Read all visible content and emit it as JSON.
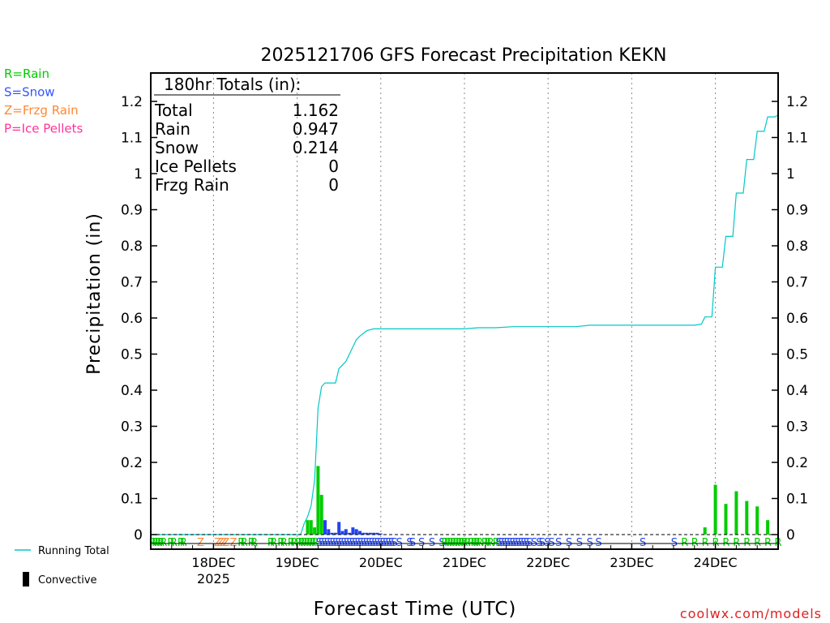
{
  "chart_data": {
    "type": "bar",
    "title": "2025121706 GFS Forecast Precipitation KEKN",
    "ylabel": "Precipitation (in)",
    "xlabel": "Forecast Time (UTC)",
    "watermark": "coolwx.com/models",
    "ylim": [
      0,
      1.28
    ],
    "yticks": [
      "0",
      "0.1",
      "0.2",
      "0.3",
      "0.4",
      "0.5",
      "0.6",
      "0.7",
      "0.8",
      "0.9",
      "1",
      "1.1",
      "1.2"
    ],
    "ytick_values": [
      0,
      0.1,
      0.2,
      0.3,
      0.4,
      0.5,
      0.6,
      0.7,
      0.8,
      0.9,
      1,
      1.1,
      1.2
    ],
    "xlim_hours": [
      6,
      186
    ],
    "x_unit": "forecast hour",
    "grid": "vertical-dotted",
    "date_ticks": [
      {
        "label": "18DEC",
        "sub": "2025",
        "hour": 24
      },
      {
        "label": "19DEC",
        "sub": "",
        "hour": 48
      },
      {
        "label": "20DEC",
        "sub": "",
        "hour": 72
      },
      {
        "label": "21DEC",
        "sub": "",
        "hour": 96
      },
      {
        "label": "22DEC",
        "sub": "",
        "hour": 120
      },
      {
        "label": "23DEC",
        "sub": "",
        "hour": 144
      },
      {
        "label": "24DEC",
        "sub": "",
        "hour": 168
      }
    ],
    "legend_types": [
      {
        "text": "R=Rain",
        "color": "#00cc00"
      },
      {
        "text": "S=Snow",
        "color": "#3355ff"
      },
      {
        "text": "Z=Frzg Rain",
        "color": "#ff8833"
      },
      {
        "text": "P=Ice Pellets",
        "color": "#ff3399"
      }
    ],
    "legend_series": [
      {
        "text": "Running Total",
        "color": "#00c8c8",
        "kind": "line"
      },
      {
        "text": "Convective",
        "color": "#000000",
        "kind": "bar"
      }
    ],
    "totals": {
      "heading": "180hr Totals (in):",
      "rows": [
        {
          "label": "Total",
          "value": "1.162"
        },
        {
          "label": "Rain",
          "value": "0.947"
        },
        {
          "label": "Snow",
          "value": "0.214"
        },
        {
          "label": "Ice Pellets",
          "value": "0"
        },
        {
          "label": "Frzg Rain",
          "value": "0"
        }
      ]
    },
    "colors": {
      "rain": "#00cc00",
      "snow": "#2244ee",
      "frzg": "#ff8833",
      "line": "#00c8c8"
    },
    "bars": [
      {
        "hour": 51,
        "value": 0.04,
        "type": "rain"
      },
      {
        "hour": 52,
        "value": 0.04,
        "type": "rain"
      },
      {
        "hour": 53,
        "value": 0.02,
        "type": "rain"
      },
      {
        "hour": 54,
        "value": 0.19,
        "type": "rain"
      },
      {
        "hour": 55,
        "value": 0.11,
        "type": "rain"
      },
      {
        "hour": 56,
        "value": 0.04,
        "type": "snow"
      },
      {
        "hour": 57,
        "value": 0.015,
        "type": "snow"
      },
      {
        "hour": 58,
        "value": 0.005,
        "type": "snow"
      },
      {
        "hour": 59,
        "value": 0.005,
        "type": "snow"
      },
      {
        "hour": 60,
        "value": 0.035,
        "type": "snow"
      },
      {
        "hour": 61,
        "value": 0.01,
        "type": "snow"
      },
      {
        "hour": 62,
        "value": 0.015,
        "type": "snow"
      },
      {
        "hour": 63,
        "value": 0.005,
        "type": "snow"
      },
      {
        "hour": 64,
        "value": 0.02,
        "type": "snow"
      },
      {
        "hour": 65,
        "value": 0.015,
        "type": "snow"
      },
      {
        "hour": 66,
        "value": 0.01,
        "type": "snow"
      },
      {
        "hour": 67,
        "value": 0.005,
        "type": "snow"
      },
      {
        "hour": 68,
        "value": 0.005,
        "type": "snow"
      },
      {
        "hour": 69,
        "value": 0.005,
        "type": "snow"
      },
      {
        "hour": 70,
        "value": 0.005,
        "type": "snow"
      },
      {
        "hour": 71,
        "value": 0.005,
        "type": "snow"
      },
      {
        "hour": 72,
        "value": 0.003,
        "type": "snow"
      },
      {
        "hour": 165,
        "value": 0.02,
        "type": "rain"
      },
      {
        "hour": 168,
        "value": 0.138,
        "type": "rain"
      },
      {
        "hour": 171,
        "value": 0.085,
        "type": "rain"
      },
      {
        "hour": 174,
        "value": 0.12,
        "type": "rain"
      },
      {
        "hour": 177,
        "value": 0.093,
        "type": "rain"
      },
      {
        "hour": 180,
        "value": 0.078,
        "type": "rain"
      },
      {
        "hour": 183,
        "value": 0.04,
        "type": "rain"
      }
    ],
    "running_total": [
      [
        6,
        0
      ],
      [
        49,
        0
      ],
      [
        50,
        0.03
      ],
      [
        51,
        0.05
      ],
      [
        52,
        0.08
      ],
      [
        53,
        0.15
      ],
      [
        53.5,
        0.25
      ],
      [
        54,
        0.35
      ],
      [
        55,
        0.41
      ],
      [
        56,
        0.42
      ],
      [
        57,
        0.42
      ],
      [
        59,
        0.42
      ],
      [
        60,
        0.46
      ],
      [
        61,
        0.47
      ],
      [
        62,
        0.48
      ],
      [
        63,
        0.5
      ],
      [
        64,
        0.52
      ],
      [
        65,
        0.54
      ],
      [
        66,
        0.55
      ],
      [
        68,
        0.565
      ],
      [
        70,
        0.57
      ],
      [
        72,
        0.57
      ],
      [
        96,
        0.57
      ],
      [
        100,
        0.573
      ],
      [
        105,
        0.573
      ],
      [
        110,
        0.576
      ],
      [
        115,
        0.576
      ],
      [
        128,
        0.576
      ],
      [
        132,
        0.58
      ],
      [
        140,
        0.58
      ],
      [
        162,
        0.58
      ],
      [
        164,
        0.583
      ],
      [
        165,
        0.603
      ],
      [
        167,
        0.603
      ],
      [
        168,
        0.741
      ],
      [
        170,
        0.741
      ],
      [
        171,
        0.826
      ],
      [
        173,
        0.826
      ],
      [
        174,
        0.946
      ],
      [
        176,
        0.946
      ],
      [
        177,
        1.039
      ],
      [
        179,
        1.039
      ],
      [
        180,
        1.117
      ],
      [
        182,
        1.117
      ],
      [
        183,
        1.157
      ],
      [
        185,
        1.157
      ],
      [
        186,
        1.162
      ]
    ],
    "type_strip": [
      {
        "hour": 6.5,
        "code": "R",
        "type": "rain"
      },
      {
        "hour": 7.3,
        "code": "R",
        "type": "rain"
      },
      {
        "hour": 8.1,
        "code": "R",
        "type": "rain"
      },
      {
        "hour": 8.9,
        "code": "R",
        "type": "rain"
      },
      {
        "hour": 9.7,
        "code": "R",
        "type": "rain"
      },
      {
        "hour": 11.8,
        "code": "R",
        "type": "rain"
      },
      {
        "hour": 12.6,
        "code": "R",
        "type": "rain"
      },
      {
        "hour": 14.7,
        "code": "R",
        "type": "rain"
      },
      {
        "hour": 15.4,
        "code": "R",
        "type": "rain"
      },
      {
        "hour": 20.3,
        "code": "Z",
        "type": "frzg"
      },
      {
        "hour": 25.2,
        "code": "Z",
        "type": "frzg"
      },
      {
        "hour": 26.0,
        "code": "Z",
        "type": "frzg"
      },
      {
        "hour": 26.8,
        "code": "Z",
        "type": "frzg"
      },
      {
        "hour": 27.6,
        "code": "Z",
        "type": "frzg"
      },
      {
        "hour": 29.7,
        "code": "Z",
        "type": "frzg"
      },
      {
        "hour": 32.0,
        "code": "R",
        "type": "rain"
      },
      {
        "hour": 32.8,
        "code": "R",
        "type": "rain"
      },
      {
        "hour": 34.9,
        "code": "R",
        "type": "rain"
      },
      {
        "hour": 35.7,
        "code": "R",
        "type": "rain"
      },
      {
        "hour": 40.5,
        "code": "R",
        "type": "rain"
      },
      {
        "hour": 41.3,
        "code": "R",
        "type": "rain"
      },
      {
        "hour": 43.4,
        "code": "R",
        "type": "rain"
      },
      {
        "hour": 44.2,
        "code": "R",
        "type": "rain"
      },
      {
        "hour": 46.3,
        "code": "R",
        "type": "rain"
      },
      {
        "hour": 47.1,
        "code": "R",
        "type": "rain"
      },
      {
        "hour": 48.5,
        "code": "R",
        "type": "rain"
      },
      {
        "hour": 49.3,
        "code": "R",
        "type": "rain"
      },
      {
        "hour": 50.1,
        "code": "R",
        "type": "rain"
      },
      {
        "hour": 50.9,
        "code": "R",
        "type": "rain"
      },
      {
        "hour": 51.7,
        "code": "R",
        "type": "rain"
      },
      {
        "hour": 52.5,
        "code": "R",
        "type": "rain"
      },
      {
        "hour": 53.3,
        "code": "R",
        "type": "rain"
      },
      {
        "hour": 54.3,
        "code": "S",
        "type": "snow"
      },
      {
        "hour": 55.1,
        "code": "S",
        "type": "snow"
      },
      {
        "hour": 55.9,
        "code": "S",
        "type": "snow"
      },
      {
        "hour": 56.7,
        "code": "S",
        "type": "snow"
      },
      {
        "hour": 57.5,
        "code": "S",
        "type": "snow"
      },
      {
        "hour": 58.3,
        "code": "S",
        "type": "snow"
      },
      {
        "hour": 59.1,
        "code": "S",
        "type": "snow"
      },
      {
        "hour": 59.9,
        "code": "S",
        "type": "snow"
      },
      {
        "hour": 60.7,
        "code": "S",
        "type": "snow"
      },
      {
        "hour": 61.5,
        "code": "S",
        "type": "snow"
      },
      {
        "hour": 62.3,
        "code": "S",
        "type": "snow"
      },
      {
        "hour": 63.1,
        "code": "S",
        "type": "snow"
      },
      {
        "hour": 63.9,
        "code": "S",
        "type": "snow"
      },
      {
        "hour": 64.7,
        "code": "S",
        "type": "snow"
      },
      {
        "hour": 65.5,
        "code": "S",
        "type": "snow"
      },
      {
        "hour": 66.3,
        "code": "S",
        "type": "snow"
      },
      {
        "hour": 67.1,
        "code": "S",
        "type": "snow"
      },
      {
        "hour": 67.9,
        "code": "S",
        "type": "snow"
      },
      {
        "hour": 68.7,
        "code": "S",
        "type": "snow"
      },
      {
        "hour": 69.5,
        "code": "S",
        "type": "snow"
      },
      {
        "hour": 70.3,
        "code": "S",
        "type": "snow"
      },
      {
        "hour": 71.1,
        "code": "S",
        "type": "snow"
      },
      {
        "hour": 71.9,
        "code": "S",
        "type": "snow"
      },
      {
        "hour": 72.7,
        "code": "S",
        "type": "snow"
      },
      {
        "hour": 73.5,
        "code": "S",
        "type": "snow"
      },
      {
        "hour": 74.3,
        "code": "S",
        "type": "snow"
      },
      {
        "hour": 75.1,
        "code": "S",
        "type": "snow"
      },
      {
        "hour": 75.9,
        "code": "S",
        "type": "snow"
      },
      {
        "hour": 77.3,
        "code": "S",
        "type": "snow"
      },
      {
        "hour": 80.3,
        "code": "S",
        "type": "snow"
      },
      {
        "hour": 81.1,
        "code": "S",
        "type": "snow"
      },
      {
        "hour": 83.7,
        "code": "S",
        "type": "snow"
      },
      {
        "hour": 86.7,
        "code": "S",
        "type": "snow"
      },
      {
        "hour": 89.6,
        "code": "S",
        "type": "snow"
      },
      {
        "hour": 90.4,
        "code": "R",
        "type": "rain"
      },
      {
        "hour": 91.2,
        "code": "R",
        "type": "rain"
      },
      {
        "hour": 92.0,
        "code": "R",
        "type": "rain"
      },
      {
        "hour": 92.8,
        "code": "R",
        "type": "rain"
      },
      {
        "hour": 93.6,
        "code": "R",
        "type": "rain"
      },
      {
        "hour": 94.4,
        "code": "R",
        "type": "rain"
      },
      {
        "hour": 95.2,
        "code": "R",
        "type": "rain"
      },
      {
        "hour": 96.0,
        "code": "R",
        "type": "rain"
      },
      {
        "hour": 96.8,
        "code": "R",
        "type": "rain"
      },
      {
        "hour": 98.0,
        "code": "R",
        "type": "rain"
      },
      {
        "hour": 98.8,
        "code": "R",
        "type": "rain"
      },
      {
        "hour": 99.6,
        "code": "R",
        "type": "rain"
      },
      {
        "hour": 100.4,
        "code": "R",
        "type": "rain"
      },
      {
        "hour": 101.9,
        "code": "R",
        "type": "rain"
      },
      {
        "hour": 102.7,
        "code": "R",
        "type": "rain"
      },
      {
        "hour": 103.5,
        "code": "R",
        "type": "rain"
      },
      {
        "hour": 105.1,
        "code": "R",
        "type": "rain"
      },
      {
        "hour": 105.9,
        "code": "S",
        "type": "snow"
      },
      {
        "hour": 106.7,
        "code": "S",
        "type": "snow"
      },
      {
        "hour": 107.5,
        "code": "S",
        "type": "snow"
      },
      {
        "hour": 108.3,
        "code": "S",
        "type": "snow"
      },
      {
        "hour": 109.1,
        "code": "S",
        "type": "snow"
      },
      {
        "hour": 109.9,
        "code": "S",
        "type": "snow"
      },
      {
        "hour": 110.7,
        "code": "S",
        "type": "snow"
      },
      {
        "hour": 111.5,
        "code": "S",
        "type": "snow"
      },
      {
        "hour": 112.3,
        "code": "S",
        "type": "snow"
      },
      {
        "hour": 113.1,
        "code": "S",
        "type": "snow"
      },
      {
        "hour": 113.9,
        "code": "S",
        "type": "snow"
      },
      {
        "hour": 114.7,
        "code": "S",
        "type": "snow"
      },
      {
        "hour": 116.0,
        "code": "S",
        "type": "snow"
      },
      {
        "hour": 117.5,
        "code": "S",
        "type": "snow"
      },
      {
        "hour": 118.3,
        "code": "S",
        "type": "snow"
      },
      {
        "hour": 119.8,
        "code": "S",
        "type": "snow"
      },
      {
        "hour": 121.0,
        "code": "S",
        "type": "snow"
      },
      {
        "hour": 123.0,
        "code": "S",
        "type": "snow"
      },
      {
        "hour": 126.0,
        "code": "S",
        "type": "snow"
      },
      {
        "hour": 129.0,
        "code": "S",
        "type": "snow"
      },
      {
        "hour": 132.0,
        "code": "S",
        "type": "snow"
      },
      {
        "hour": 134.5,
        "code": "S",
        "type": "snow"
      },
      {
        "hour": 147.2,
        "code": "S",
        "type": "snow"
      },
      {
        "hour": 156.2,
        "code": "S",
        "type": "snow"
      },
      {
        "hour": 159.2,
        "code": "R",
        "type": "rain"
      },
      {
        "hour": 162.1,
        "code": "R",
        "type": "rain"
      },
      {
        "hour": 165.1,
        "code": "R",
        "type": "rain"
      },
      {
        "hour": 168.1,
        "code": "R",
        "type": "rain"
      },
      {
        "hour": 171.1,
        "code": "R",
        "type": "rain"
      },
      {
        "hour": 174.1,
        "code": "R",
        "type": "rain"
      },
      {
        "hour": 177.1,
        "code": "R",
        "type": "rain"
      },
      {
        "hour": 180.1,
        "code": "R",
        "type": "rain"
      },
      {
        "hour": 183.1,
        "code": "R",
        "type": "rain"
      },
      {
        "hour": 186.0,
        "code": "R",
        "type": "rain"
      }
    ]
  }
}
